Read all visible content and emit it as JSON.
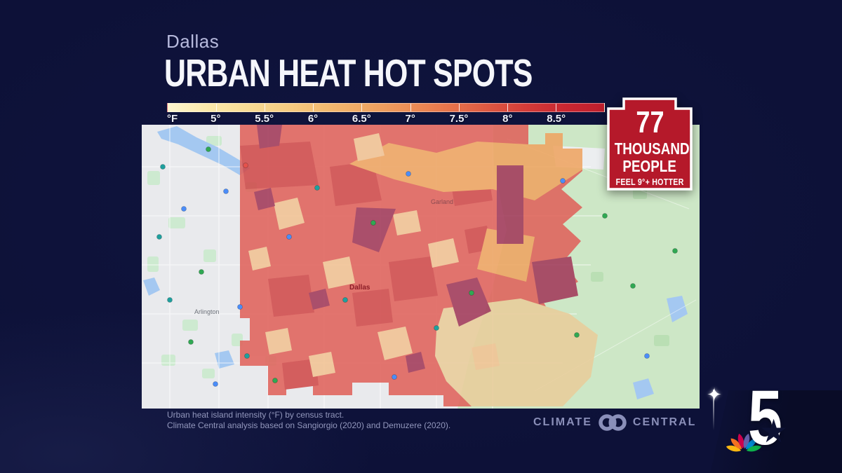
{
  "canvas": {
    "background": "#0d1138"
  },
  "header": {
    "location": "Dallas",
    "title": "URBAN HEAT HOT SPOTS",
    "location_color": "#b7badd",
    "title_color": "#f5f6fb"
  },
  "legend": {
    "unit": "°F",
    "ticks": [
      "5°",
      "5.5°",
      "6°",
      "6.5°",
      "7°",
      "7.5°",
      "8°",
      "8.5°"
    ],
    "colors": [
      "#fdf6d0",
      "#fbe9ab",
      "#f8dc96",
      "#f6cc82",
      "#f3ba70",
      "#f0a763",
      "#ed9057",
      "#e7764c",
      "#df5a42",
      "#d43c38",
      "#c92731",
      "#bf1f2d"
    ]
  },
  "badge": {
    "value": "77",
    "line1": "THOUSAND",
    "line2": "PEOPLE",
    "line3": "FEEL 9°+ HOTTER",
    "bg_color": "#b5192a",
    "border_color": "#ffffff"
  },
  "map": {
    "labels": {
      "dallas": "Dallas",
      "garland": "Garland",
      "arlington": "Arlington"
    },
    "palette": {
      "base_gray": "#e9eaed",
      "base_green": "#cde7c6",
      "water": "#a4c8f1",
      "overlay_salmon": "#e0635c",
      "overlay_red": "#d04b4b",
      "overlay_maroon": "#a23a5a",
      "overlay_orange": "#efa562",
      "overlay_peach": "#f2c394",
      "overlay_tan": "#e9cd9b"
    }
  },
  "footer": {
    "line1": "Urban heat island intensity (°F) by census tract.",
    "line2": "Climate Central analysis based on Sangiorgio (2020) and Demuzere (2020)."
  },
  "logos": {
    "climate_central_left": "CLIMATE",
    "climate_central_right": "CENTRAL",
    "station_number": "5"
  }
}
